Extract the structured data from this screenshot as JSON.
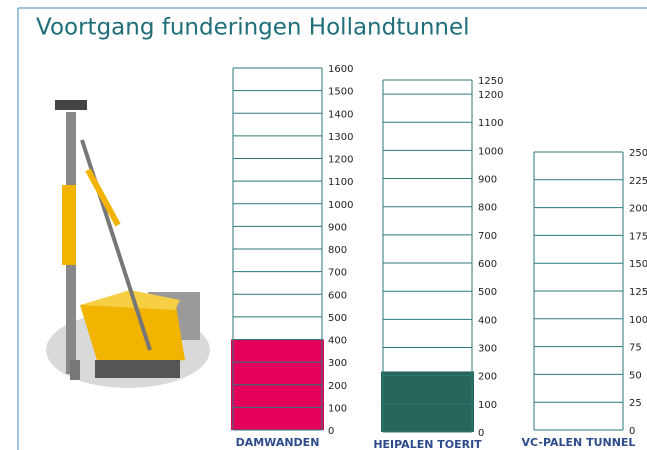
{
  "title": "Voortgang funderingen Hollandtunnel",
  "chart_data": [
    {
      "type": "bar",
      "categories": [
        "DAMWANDEN"
      ],
      "values": [
        400
      ],
      "color": "#e5005b",
      "ylim": [
        0,
        1600
      ],
      "yticks": [
        0,
        100,
        200,
        300,
        400,
        500,
        600,
        700,
        800,
        900,
        1000,
        1100,
        1200,
        1300,
        1400,
        1500,
        1600
      ],
      "grid": true
    },
    {
      "type": "bar",
      "categories": [
        "HEIPALEN TOERIT"
      ],
      "values": [
        215
      ],
      "color": "#256659",
      "ylim": [
        0,
        1250
      ],
      "yticks": [
        0,
        100,
        200,
        300,
        400,
        500,
        600,
        700,
        800,
        900,
        1000,
        1100,
        1200,
        1250
      ],
      "grid": true
    },
    {
      "type": "bar",
      "categories": [
        "VC-PALEN TUNNEL"
      ],
      "values": [
        0
      ],
      "color": "#256659",
      "ylim": [
        0,
        250
      ],
      "yticks": [
        0,
        25,
        50,
        75,
        100,
        125,
        150,
        175,
        200,
        225,
        250
      ],
      "grid": true
    }
  ]
}
